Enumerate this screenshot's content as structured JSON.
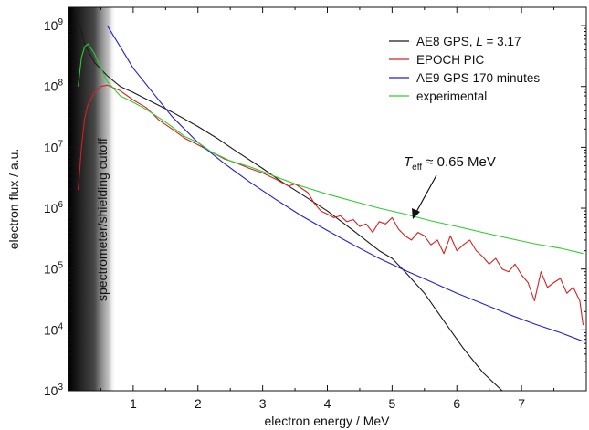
{
  "chart_data": {
    "type": "line",
    "xlabel": "electron energy / MeV",
    "ylabel": "electron flux / a.u.",
    "xlim": [
      0,
      8.0
    ],
    "ylim": [
      1000,
      2000000000
    ],
    "yscale": "log",
    "x_ticks": [
      "1",
      "2",
      "3",
      "4",
      "5",
      "6",
      "7"
    ],
    "x_tick_values": [
      1,
      2,
      3,
      4,
      5,
      6,
      7
    ],
    "y_ticks": [
      {
        "base": "10",
        "exp": "3",
        "value": 1000
      },
      {
        "base": "10",
        "exp": "4",
        "value": 10000
      },
      {
        "base": "10",
        "exp": "5",
        "value": 100000
      },
      {
        "base": "10",
        "exp": "6",
        "value": 1000000
      },
      {
        "base": "10",
        "exp": "7",
        "value": 10000000
      },
      {
        "base": "10",
        "exp": "8",
        "value": 100000000
      },
      {
        "base": "10",
        "exp": "9",
        "value": 1000000000
      }
    ],
    "legend_position": "top-right",
    "series": [
      {
        "name_prefix": "AE8 GPS, ",
        "name_italic": "L",
        "name_suffix": " = 3.17",
        "color": "#1a1a1a",
        "x": [
          0.1,
          0.15,
          0.25,
          0.4,
          0.6,
          0.8,
          1.0,
          1.3,
          1.6,
          2.0,
          2.3,
          2.6,
          3.0,
          3.3,
          3.6,
          4.0,
          4.4,
          4.8,
          5.0,
          5.2,
          5.5,
          5.8,
          6.1,
          6.4,
          6.7
        ],
        "y": [
          2000000000,
          1300000000,
          500000000,
          250000000,
          150000000,
          100000000,
          80000000,
          55000000,
          38000000,
          22000000,
          14000000,
          8500000,
          4500000,
          2700000,
          1700000,
          900000,
          430000,
          200000,
          150000,
          90000,
          40000,
          14000,
          5000,
          2000,
          1000
        ]
      },
      {
        "name": "EPOCH PIC",
        "color": "#d62020",
        "x": [
          0.15,
          0.2,
          0.25,
          0.3,
          0.4,
          0.5,
          0.6,
          0.7,
          0.8,
          1.0,
          1.2,
          1.4,
          1.6,
          1.8,
          2.0,
          2.2,
          2.4,
          2.6,
          2.8,
          3.0,
          3.2,
          3.4,
          3.5,
          3.7,
          3.8,
          3.9,
          4.0,
          4.1,
          4.2,
          4.3,
          4.4,
          4.5,
          4.6,
          4.7,
          4.8,
          4.9,
          5.0,
          5.1,
          5.2,
          5.3,
          5.4,
          5.5,
          5.6,
          5.7,
          5.8,
          5.9,
          6.0,
          6.1,
          6.2,
          6.3,
          6.4,
          6.5,
          6.6,
          6.7,
          6.8,
          6.9,
          7.0,
          7.1,
          7.2,
          7.3,
          7.4,
          7.5,
          7.6,
          7.7,
          7.8,
          7.9,
          7.95
        ],
        "y": [
          2000000,
          10000000,
          30000000,
          50000000,
          80000000,
          100000000,
          105000000,
          95000000,
          85000000,
          60000000,
          45000000,
          28000000,
          20000000,
          14000000,
          11000000,
          8500000,
          6500000,
          5500000,
          4500000,
          3800000,
          3000000,
          2300000,
          2500000,
          1800000,
          1200000,
          900000,
          800000,
          700000,
          750000,
          600000,
          650000,
          500000,
          550000,
          400000,
          600000,
          550000,
          700000,
          450000,
          350000,
          300000,
          400000,
          350000,
          250000,
          300000,
          180000,
          350000,
          200000,
          250000,
          300000,
          200000,
          160000,
          120000,
          150000,
          100000,
          90000,
          120000,
          80000,
          60000,
          30000,
          90000,
          50000,
          60000,
          70000,
          40000,
          50000,
          30000,
          12000
        ]
      },
      {
        "name": "AE9 GPS 170 minutes",
        "color": "#1f1fd6",
        "x": [
          0.6,
          0.8,
          1.0,
          1.3,
          1.6,
          2.0,
          2.4,
          2.8,
          3.2,
          3.6,
          4.0,
          4.4,
          4.8,
          5.2,
          5.6,
          6.0,
          6.4,
          6.8,
          7.2,
          7.6,
          7.95
        ],
        "y": [
          1000000000,
          450000000,
          200000000,
          80000000,
          32000000,
          12000000,
          5500000,
          2700000,
          1400000,
          750000,
          430000,
          250000,
          150000,
          95000,
          62000,
          40000,
          27000,
          18000,
          12500,
          9000,
          6500
        ]
      },
      {
        "name": "experimental",
        "color": "#2ecc2e",
        "x": [
          0.15,
          0.2,
          0.25,
          0.3,
          0.4,
          0.5,
          0.6,
          0.8,
          1.0,
          1.2,
          1.5,
          1.8,
          2.0,
          2.2,
          2.5,
          2.8,
          3.0,
          3.3,
          3.6,
          4.0,
          4.4,
          4.8,
          5.2,
          5.6,
          6.0,
          6.4,
          6.8,
          7.2,
          7.6,
          7.95
        ],
        "y": [
          100000000,
          300000000,
          450000000,
          500000000,
          350000000,
          200000000,
          120000000,
          70000000,
          55000000,
          42000000,
          26000000,
          15000000,
          12000000,
          8500000,
          6000000,
          4800000,
          4000000,
          3000000,
          2300000,
          1700000,
          1300000,
          1000000,
          800000,
          620000,
          500000,
          400000,
          320000,
          260000,
          220000,
          180000
        ]
      }
    ],
    "annotations": {
      "cutoff_label": "spectrometer/shielding cutoff",
      "teff_symbol": "T",
      "teff_sub": "eff",
      "teff_value": " ≈ 0.65 MeV"
    }
  }
}
